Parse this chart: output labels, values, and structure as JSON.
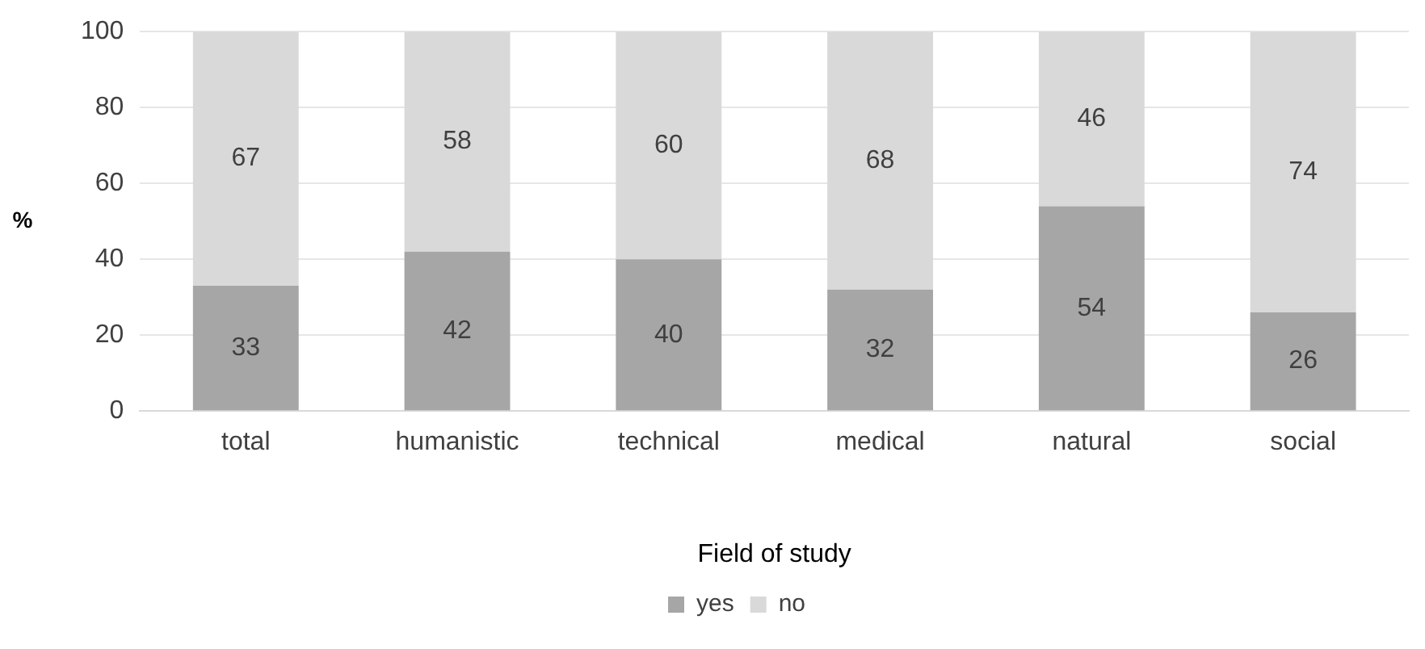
{
  "chart_data": {
    "type": "bar",
    "stacked": true,
    "xlabel": "Field of study",
    "ylabel": "%",
    "categories": [
      "total",
      "humanistic",
      "technical",
      "medical",
      "natural",
      "social"
    ],
    "series": [
      {
        "name": "yes",
        "color": "#a6a6a6",
        "values": [
          33,
          42,
          40,
          32,
          54,
          26
        ]
      },
      {
        "name": "no",
        "color": "#d9d9d9",
        "values": [
          67,
          58,
          60,
          68,
          46,
          74
        ]
      }
    ],
    "ylim": [
      0,
      100
    ],
    "yticks": [
      0,
      20,
      40,
      60,
      80,
      100
    ],
    "grid": "y",
    "legend": "bottom",
    "data_labels": true
  }
}
